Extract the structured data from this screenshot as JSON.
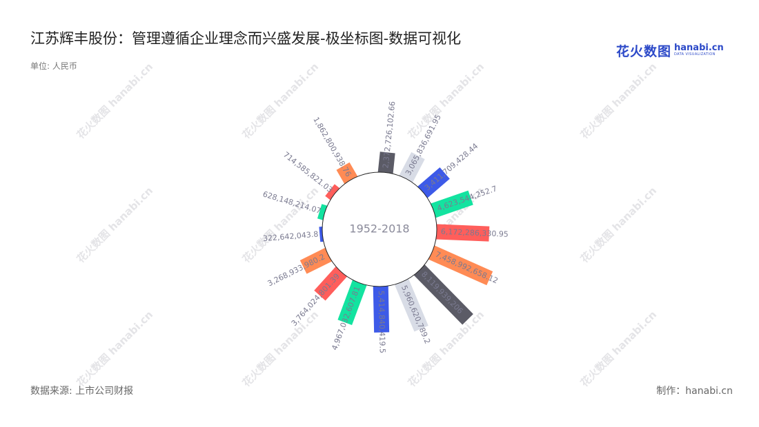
{
  "header": {
    "title": "江苏辉丰股份：管理遵循企业理念而兴盛发展-极坐标图-数据可视化",
    "unit": "单位: 人民币"
  },
  "logo": {
    "cn": "花火数图",
    "en": "hanabi.cn",
    "en_sub": "DATA VISUALIZATION"
  },
  "watermark_text": "花火数图 hanabi.cn",
  "footer": {
    "source": "数据来源: 上市公司财报",
    "maker": "制作：hanabi.cn"
  },
  "chart_data": {
    "type": "bar",
    "polar": true,
    "center_label": "1952-2018",
    "series": [
      {
        "values": [
          {
            "label": "2,372,726,102.66",
            "value": 2372726102.66,
            "color": "#5b5b66"
          },
          {
            "label": "3,065,836,691.95",
            "value": 3065836691.95,
            "color": "#d8dce6"
          },
          {
            "label": "3,411,709,428.44",
            "value": 3411709428.44,
            "color": "#3d5ae8"
          },
          {
            "label": "4,623,544,252.7",
            "value": 4623544252.7,
            "color": "#13e3a0"
          },
          {
            "label": "6,172,286,330.95",
            "value": 6172286330.95,
            "color": "#ff5e5b"
          },
          {
            "label": "7,458,992,658.12",
            "value": 7458992658.12,
            "color": "#ff8b55"
          },
          {
            "label": "8,119,939,206",
            "value": 8119939206,
            "color": "#5b5b66"
          },
          {
            "label": "5,960,620,789.2",
            "value": 5960620789.2,
            "color": "#d8dce6"
          },
          {
            "label": "5,414,840,419.5",
            "value": 5414840419.5,
            "color": "#3d5ae8"
          },
          {
            "label": "4,967,032,607.81",
            "value": 4967032607.81,
            "color": "#13e3a0"
          },
          {
            "label": "3,764,024,801.39",
            "value": 3764024801.39,
            "color": "#ff5e5b"
          },
          {
            "label": "3,268,933,980.2",
            "value": 3268933980.2,
            "color": "#ff8b55"
          },
          {
            "label": "322,642,043.8",
            "value": 322642043.8,
            "color": "#3d5ae8"
          },
          {
            "label": "628,148,214.07",
            "value": 628148214.07,
            "color": "#13e3a0"
          },
          {
            "label": "714,585,821.03",
            "value": 714585821.03,
            "color": "#ff5e5b"
          },
          {
            "label": "1,862,800,938.76",
            "value": 1862800938.76,
            "color": "#ff8b55"
          }
        ]
      }
    ],
    "angle_start_deg": -84,
    "angle_step_deg": 21.6,
    "ylim": [
      0,
      8119939206
    ]
  }
}
